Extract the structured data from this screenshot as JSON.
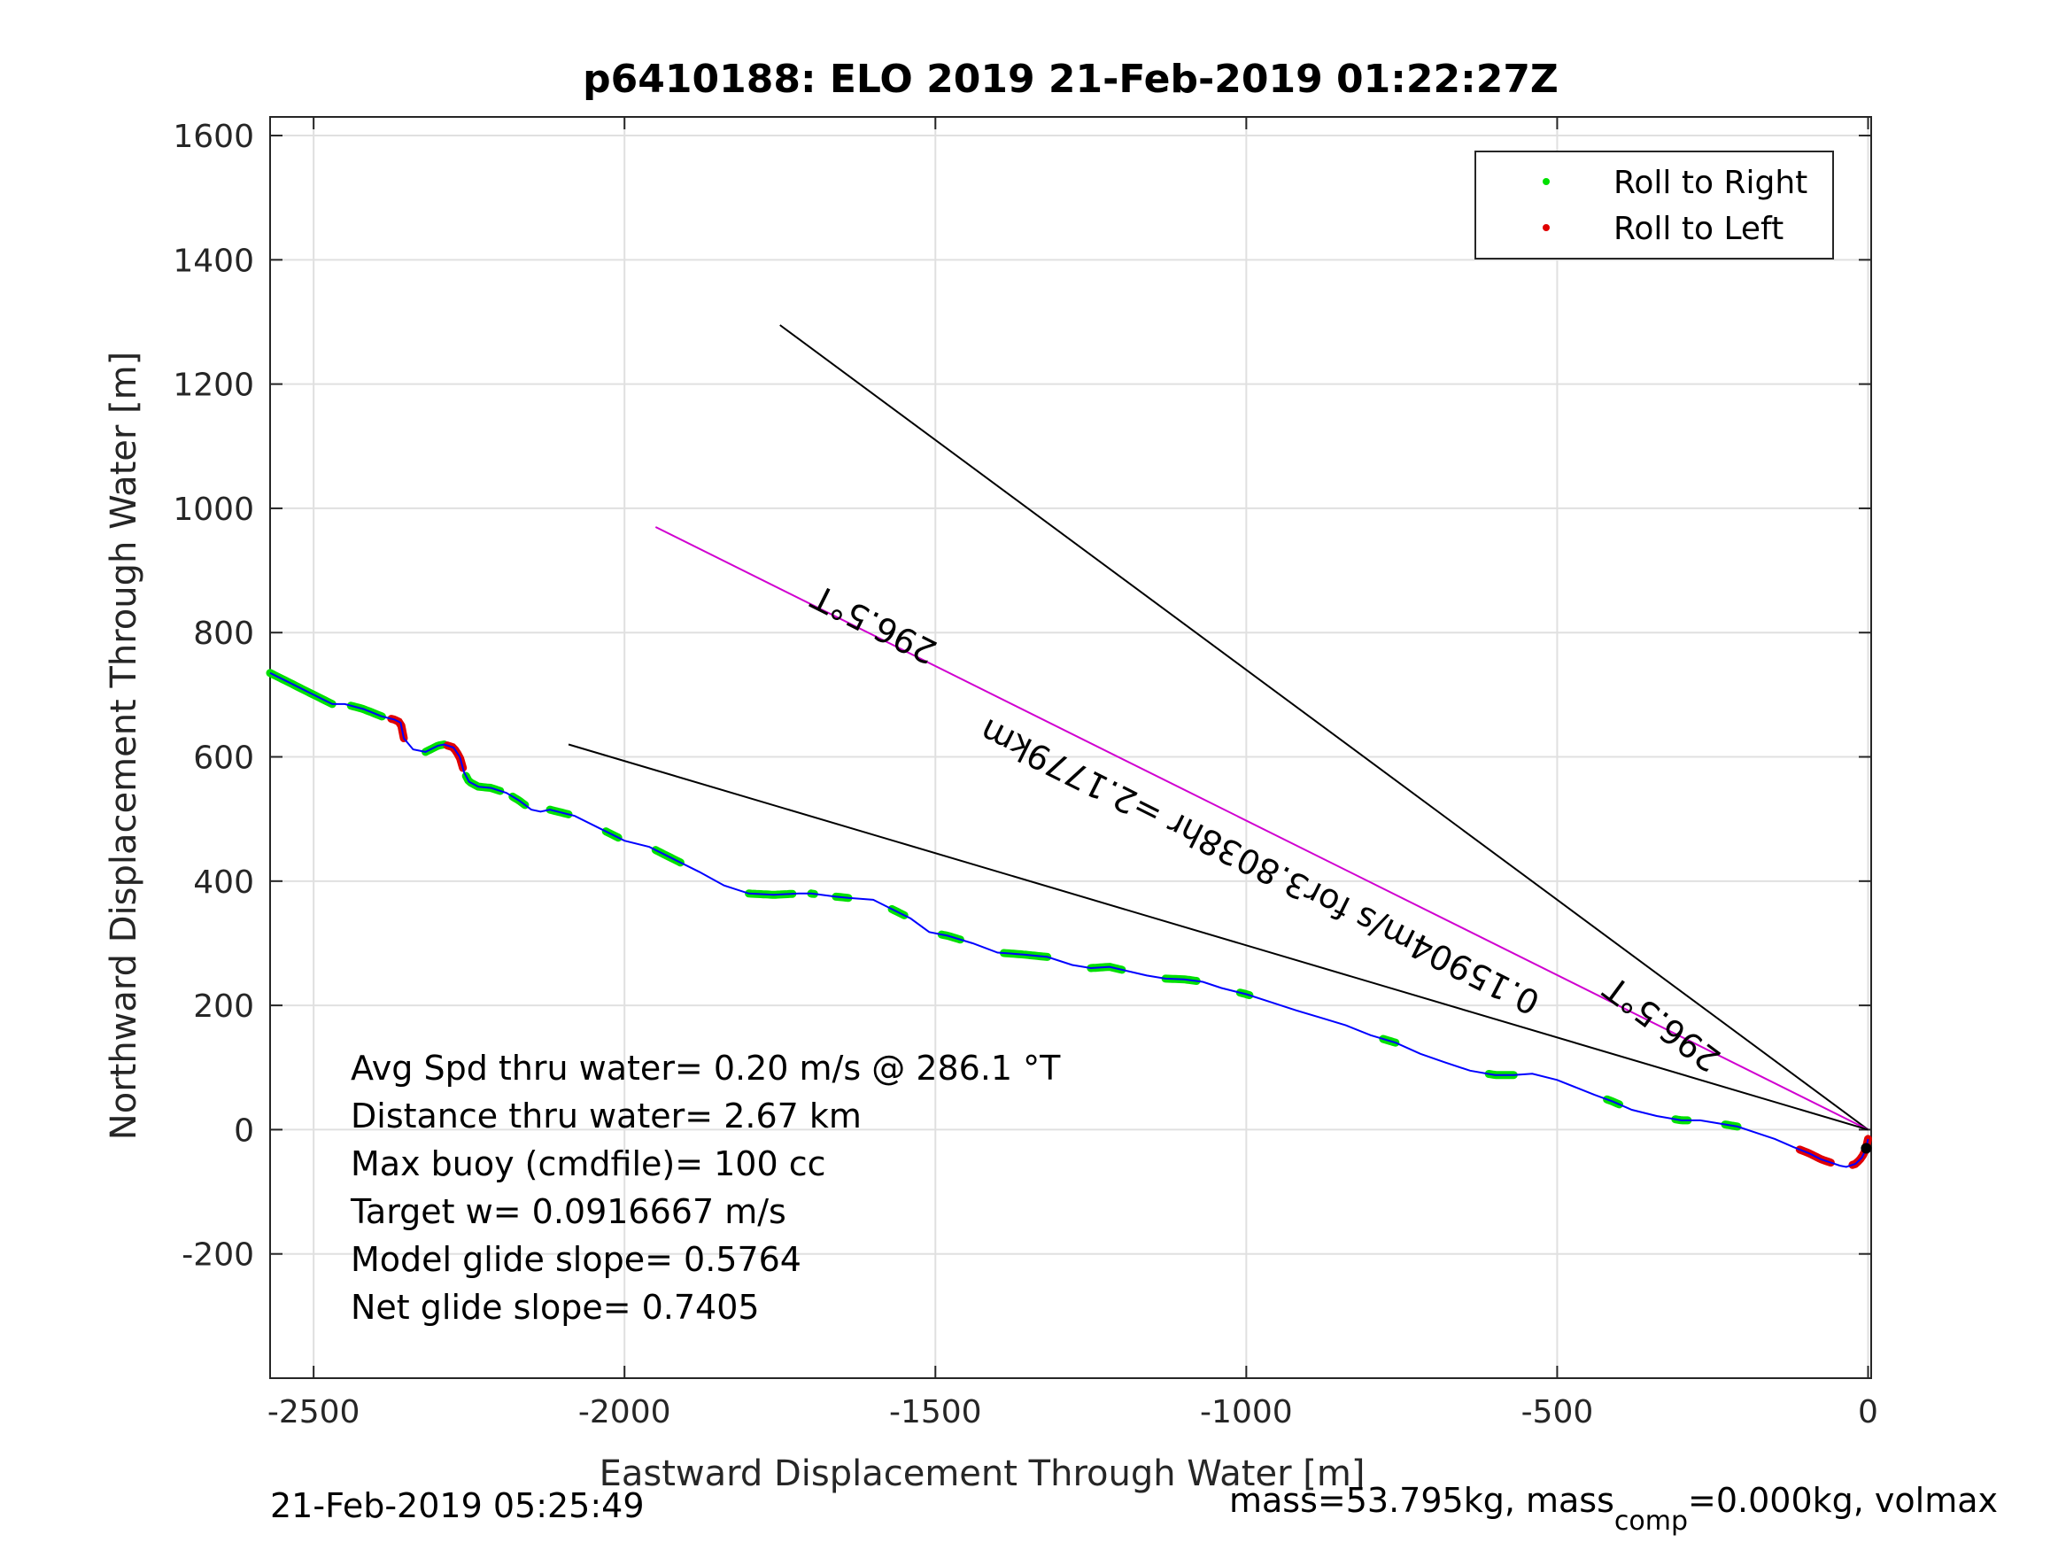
{
  "chart_data": {
    "type": "line",
    "title": "p6410188: ELO 2019 21-Feb-2019 01:22:27Z",
    "xlabel": "Eastward Displacement Through Water [m]",
    "ylabel": "Northward Displacement Through Water [m]",
    "xlim": [
      -2570,
      5
    ],
    "ylim": [
      -400,
      1630
    ],
    "xticks": [
      -2500,
      -2000,
      -1500,
      -1000,
      -500,
      0
    ],
    "yticks": [
      -200,
      0,
      200,
      400,
      600,
      800,
      1000,
      1200,
      1400,
      1600
    ],
    "xtick_labels": [
      "-2500",
      "-2000",
      "-1500",
      "-1000",
      "-500",
      "0"
    ],
    "ytick_labels": [
      "-200",
      "0",
      "200",
      "400",
      "600",
      "800",
      "1000",
      "1200",
      "1400",
      "1600"
    ],
    "grid": true,
    "legend_position": "top-right",
    "legend": [
      {
        "label": "Roll to Right",
        "color": "#00e000"
      },
      {
        "label": "Roll to Left",
        "color": "#e00000"
      }
    ],
    "track": {
      "name": "track",
      "color": "#0000ff",
      "x": [
        -2570,
        -2540,
        -2500,
        -2470,
        -2450,
        -2420,
        -2390,
        -2370,
        -2360,
        -2355,
        -2340,
        -2320,
        -2300,
        -2290,
        -2275,
        -2265,
        -2258,
        -2250,
        -2235,
        -2215,
        -2190,
        -2170,
        -2150,
        -2135,
        -2120,
        -2100,
        -2080,
        -2040,
        -2000,
        -1960,
        -1920,
        -1880,
        -1840,
        -1800,
        -1760,
        -1720,
        -1700,
        -1660,
        -1640,
        -1600,
        -1570,
        -1540,
        -1510,
        -1480,
        -1440,
        -1400,
        -1360,
        -1320,
        -1280,
        -1250,
        -1220,
        -1190,
        -1160,
        -1130,
        -1100,
        -1070,
        -1040,
        -1000,
        -960,
        -920,
        -880,
        -840,
        -800,
        -760,
        -720,
        -680,
        -640,
        -600,
        -570,
        -540,
        -500,
        -470,
        -440,
        -410,
        -380,
        -340,
        -300,
        -270,
        -240,
        -210,
        -180,
        -150,
        -120,
        -95,
        -75,
        -60,
        -45,
        -35,
        -20,
        -10,
        -3,
        0
      ],
      "y": [
        735,
        720,
        700,
        685,
        685,
        677,
        665,
        660,
        655,
        630,
        612,
        608,
        618,
        620,
        615,
        600,
        575,
        560,
        552,
        550,
        542,
        530,
        515,
        512,
        515,
        510,
        505,
        485,
        465,
        455,
        435,
        415,
        393,
        380,
        378,
        380,
        380,
        375,
        373,
        370,
        355,
        340,
        318,
        312,
        300,
        285,
        282,
        278,
        265,
        260,
        262,
        255,
        248,
        243,
        242,
        238,
        228,
        218,
        205,
        192,
        180,
        168,
        152,
        140,
        122,
        108,
        95,
        88,
        88,
        90,
        80,
        68,
        56,
        45,
        32,
        22,
        15,
        15,
        10,
        5,
        -5,
        -15,
        -28,
        -38,
        -48,
        -53,
        -58,
        -60,
        -55,
        -45,
        -30,
        -15
      ]
    },
    "lines": [
      {
        "name": "line-black-1",
        "color": "#000000",
        "x": [
          -1750,
          0
        ],
        "y": [
          1295,
          0
        ]
      },
      {
        "name": "line-magenta",
        "color": "#d000d0",
        "x": [
          -1950,
          0
        ],
        "y": [
          970,
          0
        ]
      },
      {
        "name": "line-black-2",
        "color": "#000000",
        "x": [
          -2090,
          0
        ],
        "y": [
          620,
          0
        ]
      }
    ],
    "roll_right_segments": [
      [
        -2570,
        -2470
      ],
      [
        -2440,
        -2390
      ],
      [
        -2320,
        -2290
      ],
      [
        -2255,
        -2200
      ],
      [
        -2180,
        -2160
      ],
      [
        -2120,
        -2090
      ],
      [
        -2030,
        -2010
      ],
      [
        -1950,
        -1910
      ],
      [
        -1800,
        -1730
      ],
      [
        -1700,
        -1695
      ],
      [
        -1660,
        -1640
      ],
      [
        -1570,
        -1550
      ],
      [
        -1490,
        -1460
      ],
      [
        -1390,
        -1320
      ],
      [
        -1250,
        -1200
      ],
      [
        -1130,
        -1080
      ],
      [
        -1010,
        -995
      ],
      [
        -780,
        -760
      ],
      [
        -610,
        -570
      ],
      [
        -420,
        -400
      ],
      [
        -310,
        -290
      ],
      [
        -230,
        -210
      ]
    ],
    "roll_left_segments": [
      [
        -2375,
        -2355
      ],
      [
        -2285,
        -2260
      ],
      [
        -110,
        -60
      ],
      [
        -25,
        0
      ]
    ],
    "annotations": [
      {
        "text": "296.5°T",
        "x": -1590,
        "y": 830,
        "rotation": 206.5
      },
      {
        "text": "0.15904m/s for3.8038hr =2.1779km",
        "x": -970,
        "y": 440,
        "rotation": 206.5
      },
      {
        "text": "296.5°T",
        "x": -320,
        "y": 185,
        "rotation": 216.5
      }
    ],
    "stats": [
      "Avg Spd thru water=  0.20 m/s @ 286.1 °T",
      "Distance thru water=  2.67 km",
      "Max buoy (cmdfile)= 100 cc",
      "Target w= 0.0916667 m/s",
      "Model glide slope= 0.5764",
      "Net glide slope= 0.7405"
    ],
    "footer_left": "21-Feb-2019 05:25:49",
    "footer_right_a": "mass=53.795kg, mass",
    "footer_right_sub": "comp",
    "footer_right_b": "=0.000kg, volmax"
  }
}
